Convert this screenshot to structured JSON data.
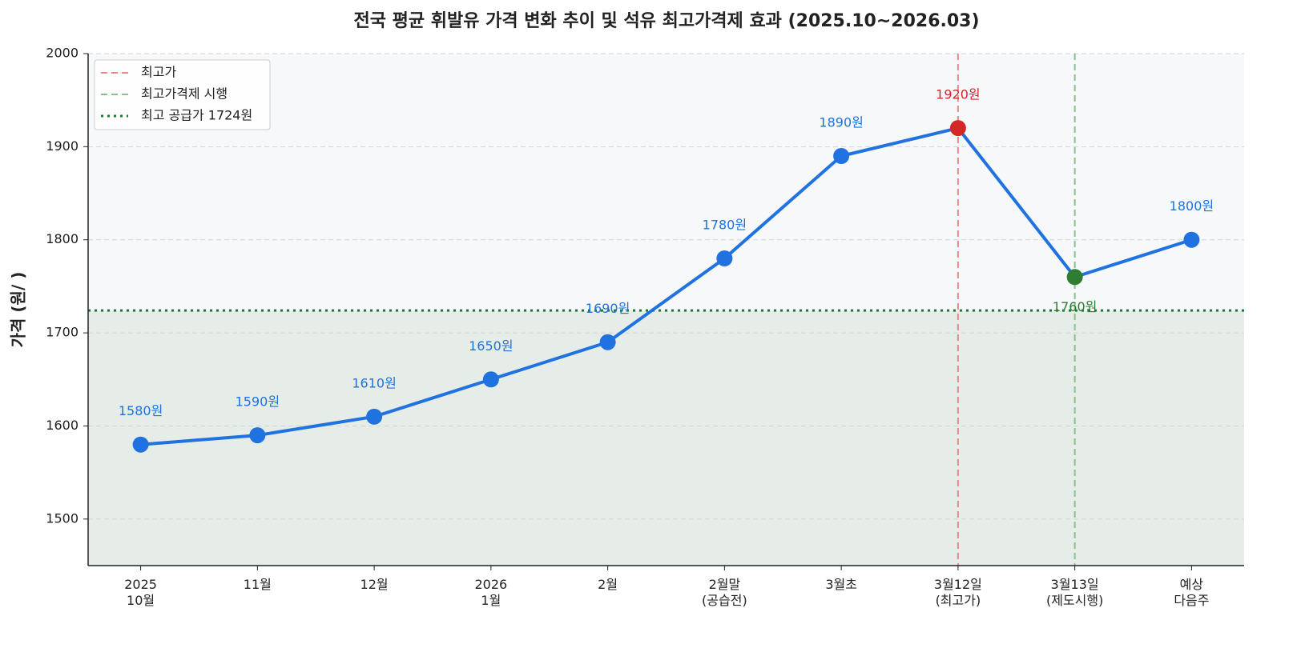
{
  "chart_data": {
    "type": "line",
    "title": "전국 평균 휘발유 가격 변화 추이 및 석유 최고가격제 효과 (2025.10~2026.03)",
    "y_label": "가격 (원/  )",
    "categories": [
      "2025\n10월",
      "11월",
      "12월",
      "2026\n1월",
      "2월",
      "2월말\n(공습전)",
      "3월초",
      "3월12일\n(최고가)",
      "3월13일\n(제도시행)",
      "예상\n다음주"
    ],
    "values": [
      1580,
      1590,
      1610,
      1650,
      1690,
      1780,
      1890,
      1920,
      1760,
      1800
    ],
    "value_labels": [
      "1580원",
      "1590원",
      "1610원",
      "1650원",
      "1690원",
      "1780원",
      "1890원",
      "1920원",
      "1760원",
      "1800원"
    ],
    "color": "#1f72e0",
    "point_colors": [
      "#1f72e0",
      "#1f72e0",
      "#1f72e0",
      "#1f72e0",
      "#1f72e0",
      "#1f72e0",
      "#1f72e0",
      "#d62728",
      "#2e7d32",
      "#1f72e0"
    ],
    "ylim": [
      1450,
      2000
    ],
    "yticks": [
      1500,
      1600,
      1700,
      1800,
      1900,
      2000
    ],
    "grid": true,
    "legend": "upper left",
    "reference_lines": [
      {
        "name": "최고가",
        "orientation": "vertical",
        "at_category": "3월12일\n(최고가)",
        "color": "#e88a8a",
        "style": "dashed"
      },
      {
        "name": "최고가격제 시행",
        "orientation": "vertical",
        "at_category": "3월13일\n(제도시행)",
        "color": "#8fbf8f",
        "style": "dashed"
      },
      {
        "name": "최고 공급가 1724원",
        "orientation": "horizontal",
        "value": 1724,
        "color": "#1b7a2a",
        "style": "dotted"
      }
    ]
  }
}
